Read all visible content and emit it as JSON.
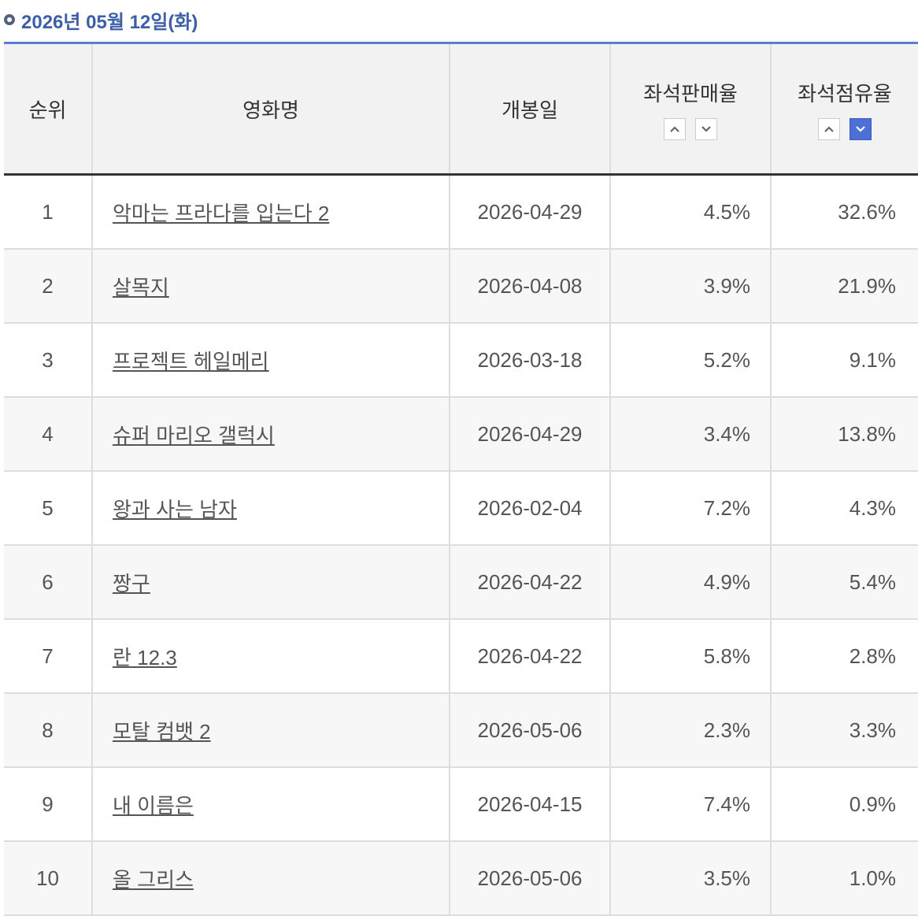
{
  "header": {
    "title": "2026년 05월 12일(화)"
  },
  "table": {
    "headers": [
      "순위",
      "영화명",
      "개봉일",
      "좌석판매율",
      "좌석점유율"
    ],
    "rows": [
      [
        "1",
        "악마는 프라다를 입는다 2",
        "2026-04-29",
        "4.5%",
        "32.6%"
      ],
      [
        "2",
        "살목지",
        "2026-04-08",
        "3.9%",
        "21.9%"
      ],
      [
        "3",
        "프로젝트 헤일메리",
        "2026-03-18",
        "5.2%",
        "9.1%"
      ],
      [
        "4",
        "슈퍼 마리오 갤럭시",
        "2026-04-29",
        "3.4%",
        "13.8%"
      ],
      [
        "5",
        "왕과 사는 남자",
        "2026-02-04",
        "7.2%",
        "4.3%"
      ],
      [
        "6",
        "짱구",
        "2026-04-22",
        "4.9%",
        "5.4%"
      ],
      [
        "7",
        "란 12.3",
        "2026-04-22",
        "5.8%",
        "2.8%"
      ],
      [
        "8",
        "모탈 컴뱃 2",
        "2026-05-06",
        "2.3%",
        "3.3%"
      ],
      [
        "9",
        "내 이름은",
        "2026-04-15",
        "7.4%",
        "0.9%"
      ],
      [
        "10",
        "올 그리스",
        "2026-05-06",
        "3.5%",
        "1.0%"
      ]
    ]
  }
}
